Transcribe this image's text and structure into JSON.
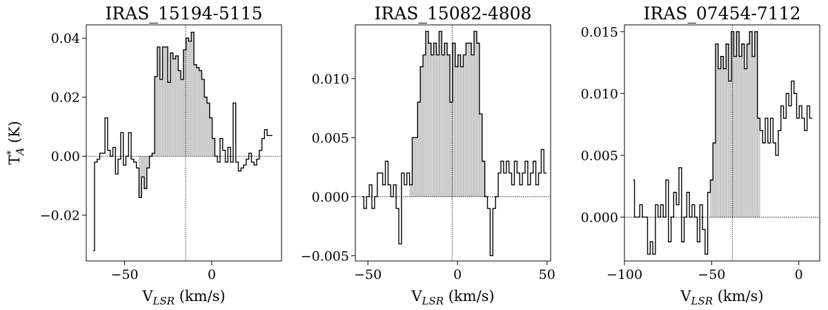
{
  "chart_data": [
    {
      "type": "line",
      "title": "IRAS_15194-5115",
      "xlabel": "V",
      "xlabel_sub": "LSR",
      "xlabel_unit": " (km/s)",
      "ylabel": "T",
      "ylabel_sup": "*",
      "ylabel_sub": "A",
      "ylabel_unit": " (K)",
      "xlim": [
        -72,
        40
      ],
      "ylim": [
        -0.0355,
        0.0445
      ],
      "xticks": [
        -50,
        0
      ],
      "xtick_labels": [
        "−50",
        "0"
      ],
      "yticks": [
        -0.02,
        0.0,
        0.02,
        0.04
      ],
      "ytick_labels": [
        "−0.02",
        "0.00",
        "0.02",
        "0.04"
      ],
      "center_velocity": -15,
      "fill_range": [
        -42,
        2
      ],
      "x": [
        -68,
        -66.5,
        -65,
        -63.5,
        -62,
        -60.5,
        -59,
        -57.5,
        -56,
        -54.5,
        -53,
        -51.5,
        -50,
        -48.5,
        -47,
        -45.5,
        -44,
        -42.5,
        -41,
        -39.5,
        -38,
        -36.5,
        -35,
        -33.5,
        -32,
        -30.5,
        -29,
        -27.5,
        -26,
        -24.5,
        -23,
        -21.5,
        -20,
        -18.5,
        -17,
        -15.5,
        -14,
        -12.5,
        -11,
        -9.5,
        -8,
        -6.5,
        -5,
        -3.5,
        -2,
        -0.5,
        1,
        2.5,
        4,
        5.5,
        7,
        8.5,
        10,
        11.5,
        13,
        14.5,
        16,
        17.5,
        19,
        20.5,
        22,
        23.5,
        25,
        26.5,
        28,
        29.5,
        31,
        32.5,
        34
      ],
      "y": [
        -0.032,
        -0.002,
        -0.001,
        0.001,
        0.001,
        0.013,
        0.002,
        0.0,
        0.003,
        -0.006,
        -0.001,
        0.008,
        -0.003,
        0.0,
        0.008,
        -0.001,
        -0.002,
        -0.004,
        -0.014,
        -0.007,
        -0.011,
        -0.004,
        0.0,
        0.001,
        0.027,
        0.037,
        0.026,
        0.037,
        0.037,
        0.025,
        0.035,
        0.033,
        0.034,
        0.029,
        0.026,
        0.036,
        0.04,
        0.039,
        0.042,
        0.031,
        0.03,
        0.029,
        0.026,
        0.02,
        0.018,
        0.013,
        0.006,
        0.0,
        -0.002,
        0.006,
        0.002,
        -0.002,
        0.003,
        -0.002,
        0.018,
        -0.002,
        -0.005,
        -0.004,
        -0.003,
        -0.001,
        0.001,
        -0.002,
        -0.003,
        -0.001,
        0.002,
        0.006,
        0.009,
        0.007,
        0.007
      ]
    },
    {
      "type": "line",
      "title": "IRAS_15082-4808",
      "xlabel": "V",
      "xlabel_sub": "LSR",
      "xlabel_unit": " (km/s)",
      "xlim": [
        -57,
        52
      ],
      "ylim": [
        -0.00545,
        0.01455
      ],
      "xticks": [
        -50,
        0,
        50
      ],
      "xtick_labels": [
        "−50",
        "0",
        "50"
      ],
      "yticks": [
        -0.005,
        0.0,
        0.005,
        0.01
      ],
      "ytick_labels": [
        "−0.005",
        "0.000",
        "0.005",
        "0.010"
      ],
      "center_velocity": -3,
      "fill_range": [
        -27,
        17
      ],
      "x": [
        -53,
        -51.5,
        -50,
        -48.5,
        -47,
        -45.5,
        -44,
        -42.5,
        -41,
        -39.5,
        -38,
        -36.5,
        -35,
        -33.5,
        -32,
        -30.5,
        -29,
        -27.5,
        -26,
        -24.5,
        -23,
        -21.5,
        -20,
        -18.5,
        -17,
        -15.5,
        -14,
        -12.5,
        -11,
        -9.5,
        -8,
        -6.5,
        -5,
        -3.5,
        -2,
        -0.5,
        1,
        2.5,
        4,
        5.5,
        7,
        8.5,
        10,
        11.5,
        13,
        14.5,
        16,
        17.5,
        19,
        20.5,
        22,
        23.5,
        25,
        26.5,
        28,
        29.5,
        31,
        32.5,
        34,
        35.5,
        37,
        38.5,
        40,
        41.5,
        43,
        44.5,
        46,
        47.5,
        49
      ],
      "y": [
        0.0,
        -0.001,
        0.0,
        0.001,
        -0.001,
        0.0,
        0.002,
        0.002,
        0.001,
        0.003,
        0.001,
        0.0,
        0.001,
        -0.001,
        -0.004,
        0.002,
        0.001,
        0.002,
        0.001,
        0.005,
        0.005,
        0.008,
        0.011,
        0.012,
        0.014,
        0.013,
        0.012,
        0.013,
        0.012,
        0.014,
        0.012,
        0.013,
        0.012,
        0.008,
        0.013,
        0.011,
        0.012,
        0.011,
        0.012,
        0.013,
        0.013,
        0.012,
        0.014,
        0.013,
        0.007,
        0.003,
        0.0,
        -0.001,
        -0.005,
        -0.001,
        0.0,
        0.002,
        0.003,
        0.002,
        0.003,
        0.002,
        0.001,
        0.003,
        0.002,
        0.001,
        0.002,
        0.003,
        0.001,
        0.002,
        0.003,
        0.001,
        0.002,
        0.004,
        0.002
      ]
    },
    {
      "type": "line",
      "title": "IRAS_07454-7112",
      "xlabel": "V",
      "xlabel_sub": "LSR",
      "xlabel_unit": " (km/s)",
      "xlim": [
        -100,
        12
      ],
      "ylim": [
        -0.00355,
        0.01555
      ],
      "xticks": [
        -100,
        -50,
        0
      ],
      "xtick_labels": [
        "−100",
        "−50",
        "0"
      ],
      "yticks": [
        0.0,
        0.005,
        0.01,
        0.015
      ],
      "ytick_labels": [
        "0.000",
        "0.005",
        "0.010",
        "0.015"
      ],
      "center_velocity": -38,
      "fill_range": [
        -50,
        -23
      ],
      "x": [
        -95,
        -93.5,
        -92,
        -90.5,
        -89,
        -87.5,
        -86,
        -84.5,
        -83,
        -81.5,
        -80,
        -78.5,
        -77,
        -75.5,
        -74,
        -72.5,
        -71,
        -69.5,
        -68,
        -66.5,
        -65,
        -63.5,
        -62,
        -60.5,
        -59,
        -57.5,
        -56,
        -54.5,
        -53,
        -51.5,
        -50,
        -48.5,
        -47,
        -45.5,
        -44,
        -42.5,
        -41,
        -39.5,
        -38,
        -36.5,
        -35,
        -33.5,
        -32,
        -30.5,
        -29,
        -27.5,
        -26,
        -24.5,
        -23,
        -21.5,
        -20,
        -18.5,
        -17,
        -15.5,
        -14,
        -12.5,
        -11,
        -9.5,
        -8,
        -6.5,
        -5,
        -3.5,
        -2,
        -0.5,
        1,
        2.5,
        4,
        5.5,
        7
      ],
      "y": [
        0.003,
        0.0,
        0.0,
        0.001,
        0.0,
        0.0,
        -0.003,
        -0.002,
        -0.003,
        0.001,
        0.0,
        0.001,
        0.0,
        0.003,
        -0.002,
        0.0,
        0.002,
        0.001,
        0.004,
        -0.002,
        0.0,
        0.002,
        0.0,
        0.001,
        0.0,
        -0.002,
        0.001,
        -0.001,
        -0.003,
        0.002,
        0.003,
        0.006,
        0.014,
        0.012,
        0.013,
        0.012,
        0.014,
        0.011,
        0.015,
        0.013,
        0.015,
        0.013,
        0.014,
        0.012,
        0.014,
        0.015,
        0.013,
        0.015,
        0.008,
        0.007,
        0.006,
        0.008,
        0.006,
        0.008,
        0.006,
        0.005,
        0.007,
        0.009,
        0.008,
        0.01,
        0.009,
        0.011,
        0.01,
        0.008,
        0.009,
        0.008,
        0.007,
        0.009,
        0.008
      ]
    }
  ]
}
